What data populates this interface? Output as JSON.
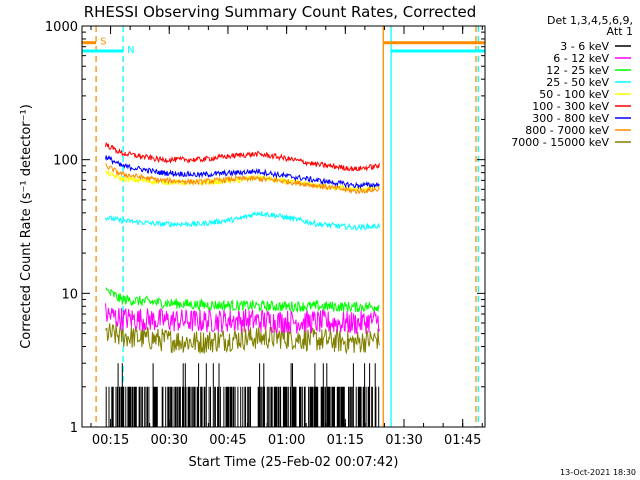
{
  "chart_data": {
    "type": "line",
    "title": "RHESSI Observing Summary Count Rates, Corrected",
    "xlabel": "Start Time (25-Feb-02 00:07:42)",
    "ylabel": "Corrected Count Rate (s⁻¹ detector⁻¹)",
    "yscale": "log",
    "ylim": [
      1,
      1000
    ],
    "xlim_minutes": [
      0,
      103
    ],
    "y_ticks": [
      {
        "value": 1,
        "label": "1"
      },
      {
        "value": 10,
        "label": "10"
      },
      {
        "value": 100,
        "label": "100"
      },
      {
        "value": 1000,
        "label": "1000"
      }
    ],
    "x_ticks": [
      {
        "minute": 7.3,
        "label": "00:15"
      },
      {
        "minute": 22.3,
        "label": "00:30"
      },
      {
        "minute": 37.3,
        "label": "00:45"
      },
      {
        "minute": 52.3,
        "label": "01:00"
      },
      {
        "minute": 67.3,
        "label": "01:15"
      },
      {
        "minute": 82.3,
        "label": "01:30"
      },
      {
        "minute": 97.3,
        "label": "01:45"
      }
    ],
    "legend_header": [
      "Det 1,3,4,5,6,9,",
      "Att 1"
    ],
    "legend_position": "right",
    "series": [
      {
        "name": "3 - 6 keV",
        "color": "#000000",
        "x": [
          6,
          20,
          35,
          50,
          65,
          76
        ],
        "y": [
          1.5,
          1.5,
          1.4,
          1.4,
          1.3,
          1.5
        ],
        "style": "spiky"
      },
      {
        "name": "6 - 12 keV",
        "color": "#ff00ff",
        "x": [
          6,
          10,
          20,
          30,
          40,
          50,
          60,
          70,
          76
        ],
        "y": [
          7,
          6.5,
          6.3,
          6.2,
          6.3,
          6.2,
          6.1,
          6,
          6.3
        ]
      },
      {
        "name": "12 - 25 keV",
        "color": "#00ff00",
        "x": [
          6,
          10,
          20,
          30,
          40,
          50,
          60,
          70,
          76
        ],
        "y": [
          10.5,
          9,
          8.5,
          8.2,
          8.1,
          8,
          8,
          7.9,
          8
        ]
      },
      {
        "name": "25 - 50 keV",
        "color": "#00ffff",
        "x": [
          6,
          10,
          20,
          30,
          40,
          45,
          50,
          60,
          70,
          76
        ],
        "y": [
          37,
          35,
          33,
          33,
          36,
          40,
          38,
          33,
          31,
          32
        ]
      },
      {
        "name": "50 - 100 keV",
        "color": "#ffff00",
        "x": [
          6,
          10,
          20,
          30,
          40,
          45,
          50,
          60,
          70,
          76
        ],
        "y": [
          80,
          72,
          68,
          67,
          70,
          74,
          70,
          64,
          60,
          62
        ]
      },
      {
        "name": "100 - 300 keV",
        "color": "#ff0000",
        "x": [
          6,
          10,
          20,
          30,
          40,
          45,
          50,
          60,
          70,
          76
        ],
        "y": [
          130,
          112,
          100,
          100,
          108,
          110,
          105,
          92,
          85,
          90
        ]
      },
      {
        "name": "300 - 800 keV",
        "color": "#0000ff",
        "x": [
          6,
          10,
          20,
          30,
          40,
          45,
          50,
          60,
          70,
          76
        ],
        "y": [
          105,
          90,
          80,
          77,
          80,
          82,
          77,
          70,
          64,
          65
        ]
      },
      {
        "name": "800 - 7000 keV",
        "color": "#ff8c00",
        "x": [
          6,
          10,
          20,
          30,
          40,
          45,
          50,
          60,
          70,
          76
        ],
        "y": [
          90,
          78,
          70,
          68,
          72,
          72,
          70,
          64,
          58,
          60
        ]
      },
      {
        "name": "7000 - 15000 keV",
        "color": "#808000",
        "x": [
          6,
          10,
          20,
          30,
          40,
          50,
          60,
          70,
          76
        ],
        "y": [
          5,
          4.8,
          4.5,
          4.3,
          4.6,
          4.7,
          4.5,
          4.3,
          4.6
        ]
      }
    ],
    "orbit_markers": [
      {
        "label": "S",
        "color": "#ff8c00",
        "x": [
          0,
          3.6
        ],
        "level": 750
      },
      {
        "label": "N",
        "color": "#00ffff",
        "x": [
          0,
          10.5
        ],
        "level": 650
      },
      {
        "label": "",
        "color": "#ff8c00",
        "x": [
          77,
          103
        ],
        "level": 750
      },
      {
        "label": "",
        "color": "#00ffff",
        "x": [
          79,
          103
        ],
        "level": 650
      }
    ],
    "vertical_lines": [
      {
        "minute": 3.6,
        "color": "#ff8c00",
        "style": "dashed"
      },
      {
        "minute": 10.5,
        "color": "#00ffff",
        "style": "dashed"
      },
      {
        "minute": 77,
        "color": "#ff8c00",
        "style": "solid"
      },
      {
        "minute": 79,
        "color": "#00ffff",
        "style": "solid"
      },
      {
        "minute": 100.7,
        "color": "#ff8c00",
        "style": "dashed"
      },
      {
        "minute": 101.3,
        "color": "#00ffff",
        "style": "dashed"
      }
    ],
    "footer_date": "13-Oct-2021 18:30",
    "grid": false
  }
}
